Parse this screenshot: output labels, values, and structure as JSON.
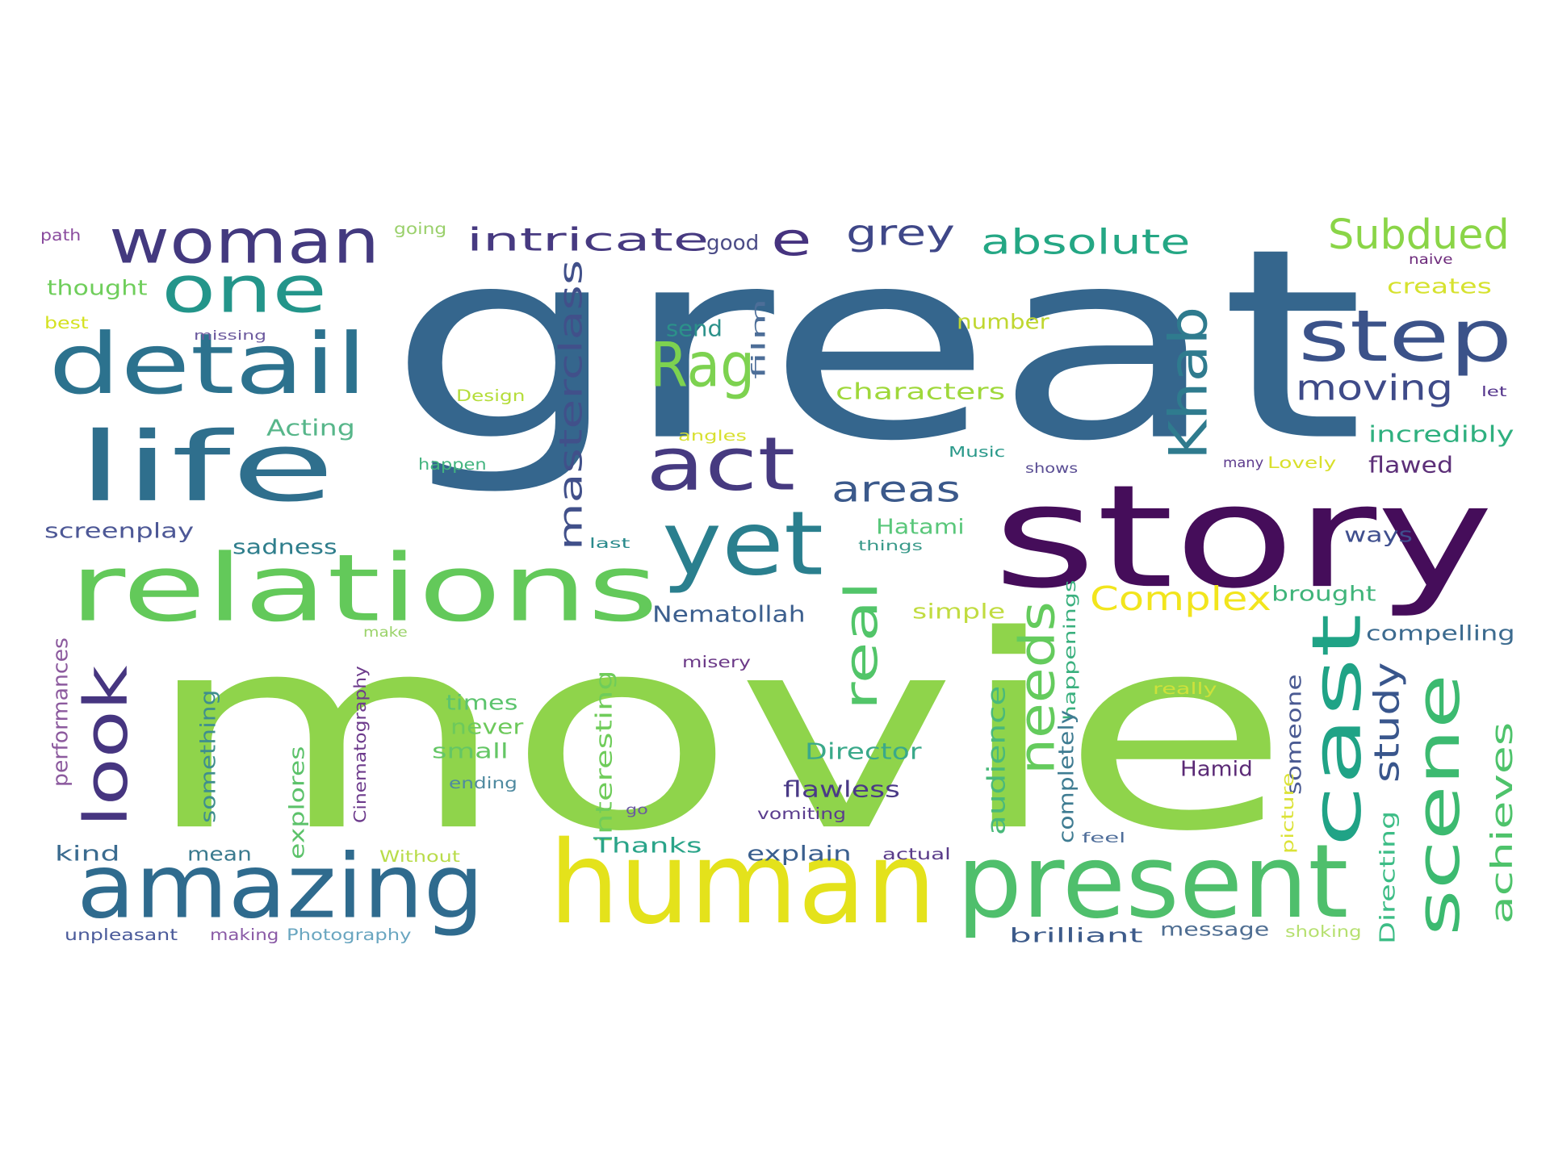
{
  "words": [
    {
      "text": "great",
      "color": "#35668d",
      "rotate": false
    },
    {
      "text": "movie",
      "color": "#8fd44b",
      "rotate": false
    },
    {
      "text": "story",
      "color": "#450d5a",
      "rotate": false
    },
    {
      "text": "human",
      "color": "#e4e21b",
      "rotate": false
    },
    {
      "text": "present",
      "color": "#4fbf6c",
      "rotate": false
    },
    {
      "text": "relations",
      "color": "#63c95a",
      "rotate": false
    },
    {
      "text": "amazing",
      "color": "#2f6b8e",
      "rotate": false
    },
    {
      "text": "yet",
      "color": "#2a7f8e",
      "rotate": false
    },
    {
      "text": "life",
      "color": "#2f6f8d",
      "rotate": false
    },
    {
      "text": "detail",
      "color": "#2c728e",
      "rotate": false
    },
    {
      "text": "woman",
      "color": "#43397f",
      "rotate": false
    },
    {
      "text": "one",
      "color": "#23958a",
      "rotate": false
    },
    {
      "text": "act",
      "color": "#463a80",
      "rotate": false
    },
    {
      "text": "step",
      "color": "#3b5289",
      "rotate": false
    },
    {
      "text": "cast",
      "color": "#20a386",
      "rotate": true
    },
    {
      "text": "scene",
      "color": "#3cba70",
      "rotate": true
    },
    {
      "text": "look",
      "color": "#463580",
      "rotate": true
    },
    {
      "text": "real",
      "color": "#52c569",
      "rotate": true
    },
    {
      "text": "needs",
      "color": "#64cb5d",
      "rotate": true
    },
    {
      "text": "Khab",
      "color": "#2f7b8e",
      "rotate": true
    },
    {
      "text": "Rag",
      "color": "#7dd250",
      "rotate": false
    },
    {
      "text": "e",
      "color": "#46337f",
      "rotate": false
    },
    {
      "text": "intricate",
      "color": "#473a81",
      "rotate": false
    },
    {
      "text": "grey",
      "color": "#3f4788",
      "rotate": false
    },
    {
      "text": "absolute",
      "color": "#24a784",
      "rotate": false
    },
    {
      "text": "Subdued",
      "color": "#8ad547",
      "rotate": false
    },
    {
      "text": "moving",
      "color": "#3f4b89",
      "rotate": false
    },
    {
      "text": "areas",
      "color": "#3b598b",
      "rotate": false
    },
    {
      "text": "Complex",
      "color": "#f2e51d",
      "rotate": false
    },
    {
      "text": "masterclass",
      "color": "#41508a",
      "rotate": true
    },
    {
      "text": "study",
      "color": "#39568c",
      "rotate": true
    },
    {
      "text": "achieves",
      "color": "#4ec36b",
      "rotate": true
    },
    {
      "text": "good",
      "color": "#4a4b86",
      "rotate": false
    },
    {
      "text": "path",
      "color": "#8a4b9e",
      "rotate": false
    },
    {
      "text": "going",
      "color": "#9ad06b",
      "rotate": false
    },
    {
      "text": "thought",
      "color": "#6fce5b",
      "rotate": false
    },
    {
      "text": "best",
      "color": "#d4e11f",
      "rotate": false
    },
    {
      "text": "missing",
      "color": "#6c5a9e",
      "rotate": false
    },
    {
      "text": "send",
      "color": "#2c918a",
      "rotate": false
    },
    {
      "text": "film",
      "color": "#4d6e98",
      "rotate": true
    },
    {
      "text": "number",
      "color": "#c0d730",
      "rotate": false
    },
    {
      "text": "naive",
      "color": "#6d2a7b",
      "rotate": false
    },
    {
      "text": "creates",
      "color": "#d6e22e",
      "rotate": false
    },
    {
      "text": "Design",
      "color": "#b5dd3a",
      "rotate": false
    },
    {
      "text": "characters",
      "color": "#9fd83a",
      "rotate": false
    },
    {
      "text": "let",
      "color": "#52328a",
      "rotate": false
    },
    {
      "text": "Acting",
      "color": "#57b68a",
      "rotate": false
    },
    {
      "text": "angles",
      "color": "#d8e030",
      "rotate": false
    },
    {
      "text": "Music",
      "color": "#2a998a",
      "rotate": false
    },
    {
      "text": "incredibly",
      "color": "#2fb07f",
      "rotate": false
    },
    {
      "text": "happen",
      "color": "#43b47f",
      "rotate": false
    },
    {
      "text": "shows",
      "color": "#5a4e94",
      "rotate": false
    },
    {
      "text": "many",
      "color": "#5e3c8e",
      "rotate": false
    },
    {
      "text": "Lovely",
      "color": "#d9e02b",
      "rotate": false
    },
    {
      "text": "flawed",
      "color": "#5c2f78",
      "rotate": false
    },
    {
      "text": "screenplay",
      "color": "#4d5896",
      "rotate": false
    },
    {
      "text": "Hatami",
      "color": "#59c77a",
      "rotate": false
    },
    {
      "text": "sadness",
      "color": "#2f7e8c",
      "rotate": false
    },
    {
      "text": "last",
      "color": "#2a8a8c",
      "rotate": false
    },
    {
      "text": "things",
      "color": "#3a9a8a",
      "rotate": false
    },
    {
      "text": "ways",
      "color": "#3f4f8e",
      "rotate": false
    },
    {
      "text": "Nematollah",
      "color": "#3c5f8e",
      "rotate": false
    },
    {
      "text": "brought",
      "color": "#3fb47a",
      "rotate": false
    },
    {
      "text": "simple",
      "color": "#c1dc40",
      "rotate": false
    },
    {
      "text": "happenings",
      "color": "#3ab07e",
      "rotate": true
    },
    {
      "text": "compelling",
      "color": "#3c6b8f",
      "rotate": false
    },
    {
      "text": "make",
      "color": "#9bd36a",
      "rotate": false
    },
    {
      "text": "misery",
      "color": "#6c3a88",
      "rotate": false
    },
    {
      "text": "performances",
      "color": "#8c5a9e",
      "rotate": true
    },
    {
      "text": "Cinematography",
      "color": "#6d3b8c",
      "rotate": true
    },
    {
      "text": "something",
      "color": "#3f8e8e",
      "rotate": true
    },
    {
      "text": "times",
      "color": "#5cc46d",
      "rotate": false
    },
    {
      "text": "never",
      "color": "#6dc95b",
      "rotate": false
    },
    {
      "text": "small",
      "color": "#64c665",
      "rotate": false
    },
    {
      "text": "interesting",
      "color": "#6fcc5a",
      "rotate": true
    },
    {
      "text": "really",
      "color": "#cde13b",
      "rotate": false
    },
    {
      "text": "Director",
      "color": "#3aa98a",
      "rotate": false
    },
    {
      "text": "audience",
      "color": "#49b97a",
      "rotate": true
    },
    {
      "text": "completely",
      "color": "#3f7c92",
      "rotate": true
    },
    {
      "text": "someone",
      "color": "#4a5a92",
      "rotate": true
    },
    {
      "text": "Hamid",
      "color": "#5b2a76",
      "rotate": false
    },
    {
      "text": "ending",
      "color": "#4f8aa0",
      "rotate": false
    },
    {
      "text": "flawless",
      "color": "#4a3a86",
      "rotate": false
    },
    {
      "text": "explores",
      "color": "#5cc26a",
      "rotate": true
    },
    {
      "text": "go",
      "color": "#6a5aa0",
      "rotate": false
    },
    {
      "text": "vomiting",
      "color": "#5b3d8e",
      "rotate": false
    },
    {
      "text": "picture",
      "color": "#dbe237",
      "rotate": true
    },
    {
      "text": "feel",
      "color": "#4f6e9a",
      "rotate": false
    },
    {
      "text": "Directing",
      "color": "#3dbd86",
      "rotate": true
    },
    {
      "text": "kind",
      "color": "#3a6b8f",
      "rotate": false
    },
    {
      "text": "mean",
      "color": "#3a7a8e",
      "rotate": false
    },
    {
      "text": "Without",
      "color": "#b9dc4a",
      "rotate": false
    },
    {
      "text": "Thanks",
      "color": "#2aa489",
      "rotate": false
    },
    {
      "text": "explain",
      "color": "#3a5f8e",
      "rotate": false
    },
    {
      "text": "actual",
      "color": "#5a3c8a",
      "rotate": false
    },
    {
      "text": "unpleasant",
      "color": "#4a5a9a",
      "rotate": false
    },
    {
      "text": "making",
      "color": "#8a5aa6",
      "rotate": false
    },
    {
      "text": "Photography",
      "color": "#6aa6c0",
      "rotate": false
    },
    {
      "text": "brilliant",
      "color": "#3c5a8a",
      "rotate": false
    },
    {
      "text": "message",
      "color": "#4f6e92",
      "rotate": false
    },
    {
      "text": "shoking",
      "color": "#b6e070",
      "rotate": false
    }
  ]
}
